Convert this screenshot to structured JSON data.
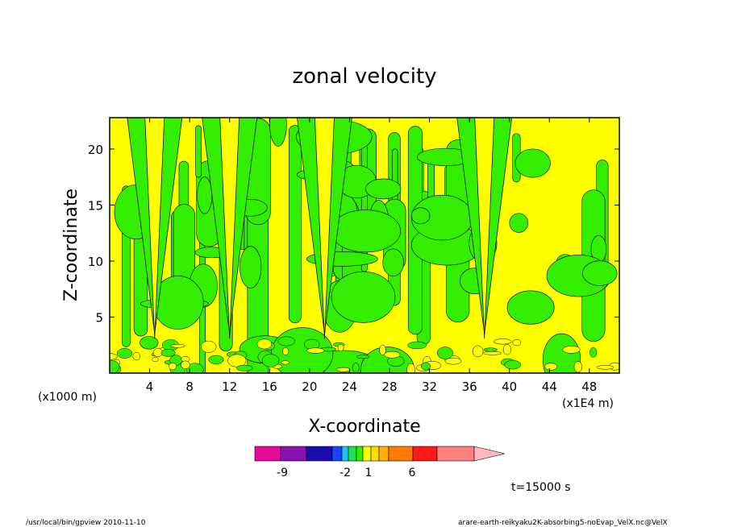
{
  "chart_data": {
    "type": "heatmap",
    "title": "zonal velocity",
    "xlabel": "X-coordinate",
    "ylabel": "Z-coordinate",
    "x_unit_left": "(x1000 m)",
    "x_unit_right": "(x1E4 m)",
    "x_ticks": [
      4,
      8,
      12,
      16,
      20,
      24,
      28,
      32,
      36,
      40,
      44,
      48
    ],
    "y_ticks": [
      5,
      10,
      15,
      20
    ],
    "xlim": [
      0,
      51
    ],
    "ylim": [
      0,
      22.8
    ],
    "colorbar": {
      "tick_labels": [
        "-9",
        "-2",
        "1",
        "6"
      ],
      "colors": [
        "#e40a9a",
        "#8a10b0",
        "#1a0ab0",
        "#1a44ff",
        "#20c0ff",
        "#20e050",
        "#33ee00",
        "#ffff00",
        "#ffdd00",
        "#ffb000",
        "#ff7a00",
        "#ff1a1a",
        "#ff8080",
        "#ffb8c0"
      ]
    },
    "field_colors": {
      "low": "#33ee00",
      "high": "#ffff00"
    },
    "updrafts_x": [
      4.5,
      12,
      21.5,
      37.5
    ],
    "time_label": "t=15000 s"
  },
  "footer": {
    "left": "/usr/local/bin/gpview  2010-11-10",
    "right": "arare-earth-reikyaku2K-absorbing5-noEvap_VelX.nc@VelX"
  }
}
